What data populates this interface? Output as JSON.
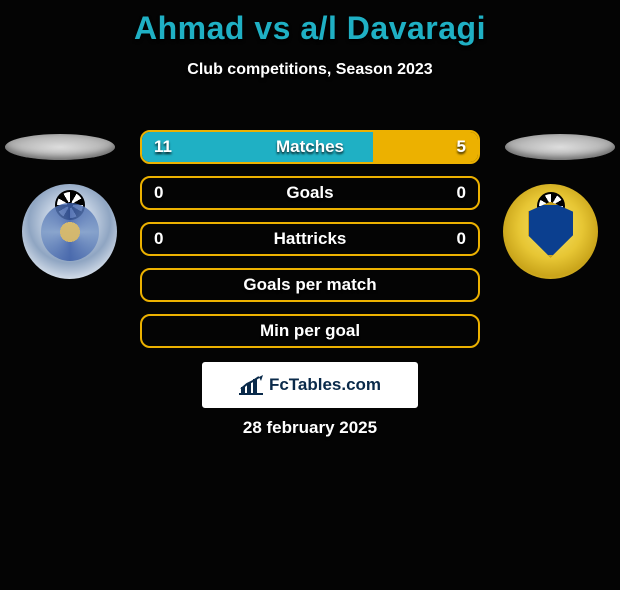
{
  "background_color": "#040404",
  "title": "Ahmad vs a/l Davaragi",
  "title_color": "#1fb0c4",
  "subtitle": "Club competitions, Season 2023",
  "date": "28 february 2025",
  "accent_color": "#ecb100",
  "brand": "FcTables.com",
  "rows": [
    {
      "label": "Matches",
      "left_value": "11",
      "right_value": "5",
      "left_pct": 68.75,
      "right_pct": 31.25,
      "border_color": "#ecb100",
      "left_fill": "#1fb0c4",
      "right_fill": "#ecb100"
    },
    {
      "label": "Goals",
      "left_value": "0",
      "right_value": "0",
      "left_pct": 0,
      "right_pct": 0,
      "border_color": "#ecb100",
      "left_fill": "#1fb0c4",
      "right_fill": "#ecb100"
    },
    {
      "label": "Hattricks",
      "left_value": "0",
      "right_value": "0",
      "left_pct": 0,
      "right_pct": 0,
      "border_color": "#ecb100",
      "left_fill": "#1fb0c4",
      "right_fill": "#ecb100"
    },
    {
      "label": "Goals per match",
      "left_value": "",
      "right_value": "",
      "left_pct": 0,
      "right_pct": 0,
      "border_color": "#ecb100",
      "left_fill": "#1fb0c4",
      "right_fill": "#ecb100"
    },
    {
      "label": "Min per goal",
      "left_value": "",
      "right_value": "",
      "left_pct": 0,
      "right_pct": 0,
      "border_color": "#ecb100",
      "left_fill": "#1fb0c4",
      "right_fill": "#ecb100"
    }
  ]
}
